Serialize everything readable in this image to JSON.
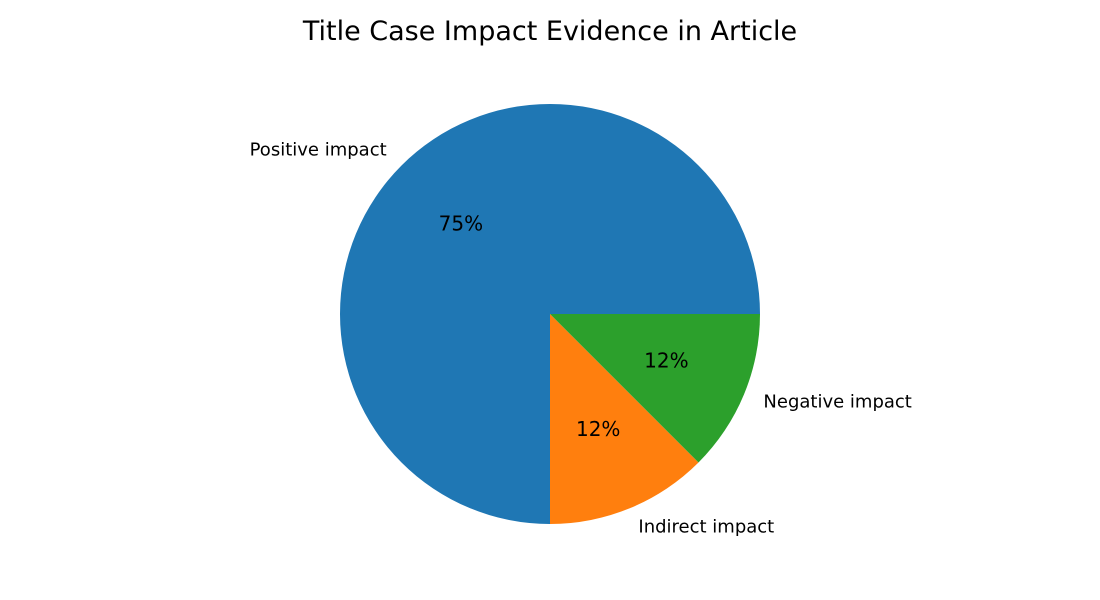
{
  "chart_data": {
    "type": "pie",
    "title": "Title Case Impact Evidence in Article",
    "slices": [
      {
        "label": "Positive impact",
        "value": 75,
        "pct_label": "75%",
        "color": "#1f77b4"
      },
      {
        "label": "Indirect impact",
        "value": 12.5,
        "pct_label": "12%",
        "color": "#ff7f0e"
      },
      {
        "label": "Negative impact",
        "value": 12.5,
        "pct_label": "12%",
        "color": "#2ca02c"
      }
    ],
    "start_angle_deg": 0,
    "direction": "counterclockwise",
    "legend": "none"
  }
}
